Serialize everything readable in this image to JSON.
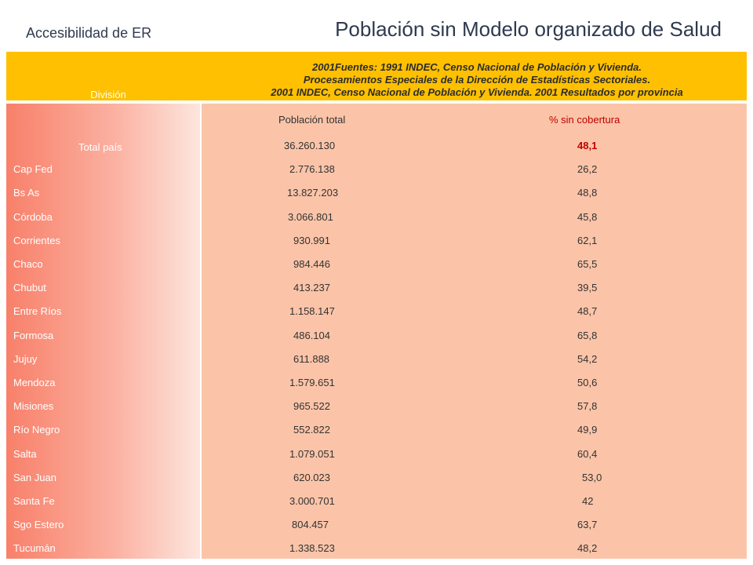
{
  "header": {
    "subtitle": "Accesibilidad de ER",
    "title": "Población sin Modelo organizado de Salud"
  },
  "table": {
    "division_header": "División",
    "source_lines": [
      "2001Fuentes: 1991 INDEC, Censo Nacional de Población y Vivienda.",
      "Procesamientos Especiales de la Dirección de Estadísticas Sectoriales.",
      "2001 INDEC, Censo Nacional de Población y Vivienda. 2001 Resultados por provincia"
    ],
    "col_population": "Población total",
    "col_percent": "% sin cobertura",
    "rows": [
      {
        "name": "Total país",
        "population": "36.260.130",
        "percent": "48,1"
      },
      {
        "name": "Cap Fed",
        "population": "2.776.138",
        "percent": "26,2"
      },
      {
        "name": "Bs As",
        "population": "13.827.203",
        "percent": "48,8"
      },
      {
        "name": "Córdoba",
        "population": "3.066.801",
        "percent": "45,8"
      },
      {
        "name": "Corrientes",
        "population": "930.991",
        "percent": "62,1"
      },
      {
        "name": "Chaco",
        "population": "984.446",
        "percent": "65,5"
      },
      {
        "name": "Chubut",
        "population": "413.237",
        "percent": "39,5"
      },
      {
        "name": "Entre Ríos",
        "population": "1.158.147",
        "percent": "48,7"
      },
      {
        "name": "Formosa",
        "population": "486.104",
        "percent": "65,8"
      },
      {
        "name": "Jujuy",
        "population": "611.888",
        "percent": "54,2"
      },
      {
        "name": "Mendoza",
        "population": "1.579.651",
        "percent": "50,6"
      },
      {
        "name": "Misiones",
        "population": "965.522",
        "percent": "57,8"
      },
      {
        "name": "Río Negro",
        "population": "552.822",
        "percent": "49,9"
      },
      {
        "name": "Salta",
        "population": "1.079.051",
        "percent": "60,4"
      },
      {
        "name": "San Juan",
        "population": "620.023",
        "percent": "53,0"
      },
      {
        "name": "Santa Fe",
        "population": "3.000.701",
        "percent": "42"
      },
      {
        "name": "Sgo Estero",
        "population": "804.457",
        "percent": "63,7"
      },
      {
        "name": "Tucumán",
        "population": "1.338.523",
        "percent": "48,2"
      }
    ]
  }
}
